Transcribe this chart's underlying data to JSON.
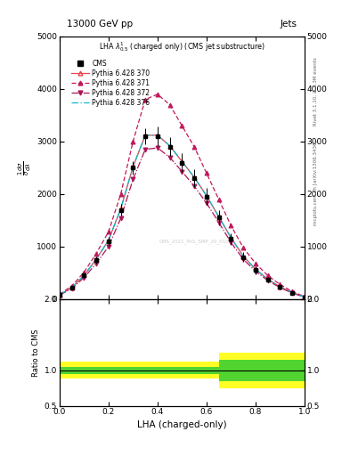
{
  "title_top": "13000 GeV pp",
  "title_right": "Jets",
  "plot_title": "LHA $\\lambda^{1}_{0.5}$ (charged only) (CMS jet substructure)",
  "xlabel": "LHA (charged-only)",
  "right_label_top": "Rivet 3.1.10, ≥ 3.3M events",
  "right_label_bottom": "mcplots.cern.ch [arXiv:1306.3436]",
  "watermark": "CMS_2021_PAS_SMP_20_010",
  "xlim": [
    0,
    1
  ],
  "ylim_main": [
    0,
    5000
  ],
  "ylim_ratio": [
    0.5,
    2.0
  ],
  "yticks_main": [
    0,
    1000,
    2000,
    3000,
    4000,
    5000
  ],
  "yticks_ratio": [
    0.5,
    1.0,
    2.0
  ],
  "lha_x": [
    0.0,
    0.05,
    0.1,
    0.15,
    0.2,
    0.25,
    0.3,
    0.35,
    0.4,
    0.45,
    0.5,
    0.55,
    0.6,
    0.65,
    0.7,
    0.75,
    0.8,
    0.85,
    0.9,
    0.95,
    1.0
  ],
  "cms_y": [
    80,
    220,
    450,
    750,
    1100,
    1700,
    2500,
    3100,
    3100,
    2900,
    2600,
    2300,
    1950,
    1550,
    1150,
    800,
    550,
    370,
    230,
    120,
    40
  ],
  "cms_err": [
    15,
    35,
    50,
    70,
    90,
    110,
    130,
    160,
    180,
    180,
    180,
    170,
    160,
    140,
    110,
    90,
    70,
    55,
    40,
    22,
    12
  ],
  "py370_y": [
    80,
    220,
    450,
    760,
    1120,
    1720,
    2520,
    3120,
    3120,
    2920,
    2620,
    2320,
    1970,
    1570,
    1170,
    820,
    570,
    380,
    235,
    125,
    42
  ],
  "py371_y": [
    90,
    250,
    510,
    870,
    1280,
    2000,
    3000,
    3800,
    3900,
    3700,
    3300,
    2900,
    2400,
    1900,
    1400,
    980,
    680,
    450,
    280,
    145,
    50
  ],
  "py372_y": [
    75,
    200,
    410,
    680,
    1000,
    1540,
    2280,
    2850,
    2880,
    2700,
    2430,
    2150,
    1830,
    1460,
    1080,
    760,
    530,
    355,
    220,
    115,
    38
  ],
  "py376_y": [
    80,
    220,
    450,
    760,
    1120,
    1720,
    2520,
    3120,
    3120,
    2920,
    2620,
    2320,
    1970,
    1570,
    1170,
    820,
    570,
    380,
    235,
    125,
    42
  ],
  "ratio_bins": [
    0.0,
    0.1,
    0.2,
    0.3,
    0.4,
    0.5,
    0.6,
    0.65,
    0.7,
    1.0
  ],
  "ratio_green_lo": [
    0.95,
    0.95,
    0.95,
    0.95,
    0.95,
    0.95,
    0.95,
    0.85,
    0.85,
    0.95
  ],
  "ratio_green_hi": [
    1.05,
    1.05,
    1.05,
    1.05,
    1.05,
    1.05,
    1.05,
    1.15,
    1.15,
    1.05
  ],
  "ratio_yellow_lo": [
    0.88,
    0.88,
    0.88,
    0.88,
    0.88,
    0.88,
    0.88,
    0.75,
    0.75,
    0.88
  ],
  "ratio_yellow_hi": [
    1.12,
    1.12,
    1.12,
    1.12,
    1.12,
    1.12,
    1.12,
    1.25,
    1.25,
    1.12
  ],
  "colors": {
    "cms": "#000000",
    "py370": "#e8454a",
    "py371": "#c2185b",
    "py372": "#ad1457",
    "py376": "#00bcd4"
  }
}
